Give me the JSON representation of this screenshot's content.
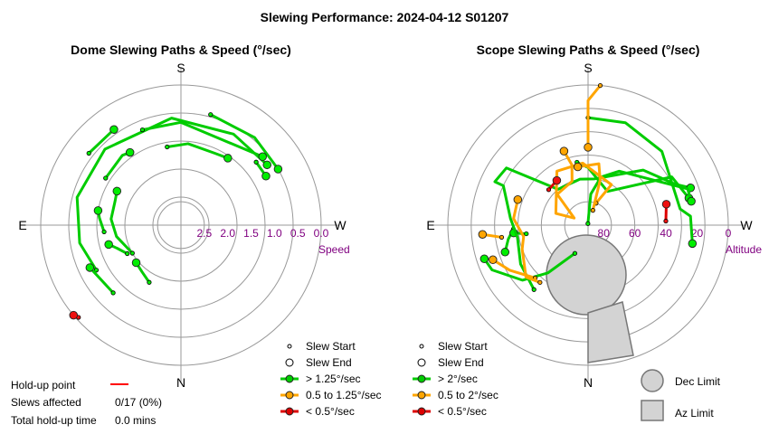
{
  "title": "Slewing Performance: 2024-04-12 S01207",
  "chart_data": [
    {
      "type": "polar",
      "title": "Dome Slewing Paths & Speed (°/sec)",
      "directions": {
        "top": "S",
        "bottom": "N",
        "left": "E",
        "right": "W"
      },
      "radial_label": "Speed",
      "radial_ticks": [
        "2.5",
        "2.0",
        "1.5",
        "1.0",
        "0.5",
        "0.0"
      ],
      "radial_values": [
        2.5,
        2.0,
        1.5,
        1.0,
        0.5,
        0.0
      ],
      "speed_range": [
        0,
        3
      ],
      "grid": true,
      "legend": [
        {
          "label": "Slew Start",
          "marker": "small-circle"
        },
        {
          "label": "Slew End",
          "marker": "circle"
        },
        {
          "label": "> 1.25°/sec",
          "color": "#00cc00"
        },
        {
          "label": "0.5 to 1.25°/sec",
          "color": "#ffa500"
        },
        {
          "label": "< 0.5°/sec",
          "color": "#dd0000"
        }
      ],
      "paths": [
        {
          "class": "fast",
          "pts": [
            [
              151,
              1.6
            ],
            [
              140,
              1.7
            ],
            [
              130,
              1.75
            ]
          ]
        },
        {
          "class": "fast",
          "pts": [
            [
              120,
              1.8
            ],
            [
              100,
              1.6
            ],
            [
              85,
              1.5
            ],
            [
              70,
              1.5
            ],
            [
              62,
              1.45
            ]
          ]
        },
        {
          "class": "fast",
          "pts": [
            [
              118,
              1.7
            ],
            [
              110,
              1.55
            ],
            [
              105,
              1.4
            ]
          ]
        },
        {
          "class": "fast",
          "pts": [
            [
              95,
              1.35
            ],
            [
              85,
              1.25
            ],
            [
              80,
              1.2
            ]
          ]
        },
        {
          "class": "fast",
          "pts": [
            [
              58,
              1.1
            ],
            [
              40,
              1.05
            ],
            [
              35,
              1.1
            ]
          ]
        },
        {
          "class": "fast",
          "pts": [
            [
              10,
              1.3
            ],
            [
              -5,
              1.25
            ],
            [
              -25,
              1.3
            ],
            [
              -35,
              1.25
            ]
          ]
        },
        {
          "class": "fast",
          "pts": [
            [
              118,
              0.95
            ],
            [
              100,
              0.8
            ],
            [
              75,
              0.7
            ],
            [
              45,
              0.7
            ],
            [
              5,
              0.7
            ],
            [
              -30,
              0.75
            ],
            [
              -55,
              0.75
            ]
          ]
        },
        {
          "class": "fast",
          "pts": [
            [
              -15,
              0.55
            ],
            [
              -40,
              0.55
            ],
            [
              -60,
              0.6
            ]
          ]
        },
        {
          "class": "fast",
          "pts": [
            [
              22,
              0.8
            ],
            [
              0,
              0.8
            ],
            [
              -50,
              0.72
            ]
          ]
        },
        {
          "class": "fast",
          "pts": [
            [
              135,
              0.95
            ],
            [
              115,
              0.85
            ]
          ]
        },
        {
          "class": "fast",
          "pts": [
            [
              52,
              0.5
            ],
            [
              35,
              0.5
            ]
          ]
        },
        {
          "class": "fast",
          "pts": [
            [
              -50,
              0.9
            ],
            [
              -60,
              0.9
            ]
          ]
        },
        {
          "class": "slow",
          "pts": [
            [
              132,
              0.05
            ],
            [
              130,
              0.0
            ]
          ]
        }
      ]
    },
    {
      "type": "polar",
      "title": "Scope Slewing Paths & Speed (°/sec)",
      "directions": {
        "top": "S",
        "bottom": "N",
        "left": "E",
        "right": "W"
      },
      "radial_label": "Altitude",
      "radial_ticks": [
        "80",
        "60",
        "40",
        "20",
        "0"
      ],
      "radial_values": [
        80,
        60,
        40,
        20,
        0
      ],
      "grid": true,
      "legend": [
        {
          "label": "Slew Start",
          "marker": "small-circle"
        },
        {
          "label": "Slew End",
          "marker": "circle"
        },
        {
          "label": "> 2°/sec",
          "color": "#00cc00"
        },
        {
          "label": "0.5 to 2°/sec",
          "color": "#ffa500"
        },
        {
          "label": "< 0.5°/sec",
          "color": "#dd0000"
        }
      ],
      "limits": [
        {
          "label": "Dec Limit",
          "shape": "circle",
          "az": 0,
          "alt": 45,
          "radius_deg": 15
        },
        {
          "label": "Az Limit",
          "shape": "wedge",
          "alt_range": [
            0,
            45
          ],
          "az_range": [
            -20,
            0
          ]
        }
      ],
      "paths": [
        {
          "class": "fast",
          "pts": [
            [
              0,
              21
            ],
            [
              -20,
              20
            ],
            [
              -45,
              23
            ],
            [
              -80,
              30
            ],
            [
              -85,
              24
            ],
            [
              -100,
              22
            ]
          ]
        },
        {
          "class": "fast",
          "pts": [
            [
              93,
              42
            ],
            [
              100,
              38
            ],
            [
              108,
              34
            ]
          ]
        },
        {
          "class": "fast",
          "pts": [
            [
              98,
              50
            ],
            [
              96,
              42
            ]
          ]
        },
        {
          "class": "fast",
          "pts": [
            [
              155,
              70
            ],
            [
              140,
              50
            ],
            [
              130,
              35
            ],
            [
              115,
              22
            ],
            [
              108,
              20
            ]
          ]
        },
        {
          "class": "fast",
          "pts": [
            [
              140,
              36
            ],
            [
              120,
              40
            ],
            [
              100,
              44
            ],
            [
              85,
              40
            ],
            [
              65,
              30
            ],
            [
              65,
              24
            ],
            [
              55,
              26
            ],
            [
              40,
              60
            ],
            [
              10,
              60
            ],
            [
              -8,
              60
            ],
            [
              -45,
              40
            ],
            [
              -65,
              28
            ],
            [
              -70,
              20
            ]
          ]
        },
        {
          "class": "fast",
          "pts": [
            [
              10,
              49
            ],
            [
              0,
              53
            ],
            [
              -30,
              65
            ],
            [
              -60,
              28
            ],
            [
              -75,
              23
            ]
          ]
        },
        {
          "class": "fast",
          "pts": [
            [
              5,
              89
            ],
            [
              -5,
              70
            ],
            [
              -15,
              58
            ],
            [
              -30,
              50
            ],
            [
              -70,
              22
            ],
            [
              -77,
              22
            ]
          ]
        },
        {
          "class": "mid",
          "pts": [
            [
              -5,
              0
            ],
            [
              0,
              10
            ],
            [
              0,
              20
            ],
            [
              0,
              40
            ]
          ]
        },
        {
          "class": "mid",
          "pts": [
            [
              -20,
              75
            ],
            [
              -30,
              60
            ],
            [
              5,
              50
            ],
            [
              30,
              50
            ],
            [
              70,
              68
            ],
            [
              63,
              80
            ],
            [
              45,
              62
            ],
            [
              20,
              60
            ],
            [
              15,
              50
            ],
            [
              18,
              40
            ]
          ]
        },
        {
          "class": "mid",
          "pts": [
            [
              -18,
              80
            ],
            [
              -15,
              60
            ],
            [
              -10,
              50
            ],
            [
              10,
              52
            ]
          ]
        },
        {
          "class": "mid",
          "pts": [
            [
              135,
              42
            ],
            [
              120,
              32
            ],
            [
              110,
              25
            ]
          ]
        },
        {
          "class": "mid",
          "pts": [
            [
              98,
              34
            ],
            [
              95,
              22
            ]
          ]
        },
        {
          "class": "mid",
          "pts": [
            [
              140,
              42
            ],
            [
              130,
              38
            ],
            [
              110,
              45
            ],
            [
              100,
              48
            ],
            [
              85,
              42
            ],
            [
              70,
              42
            ]
          ]
        },
        {
          "class": "slow",
          "pts": [
            [
              -87,
              40
            ],
            [
              -75,
              38
            ]
          ]
        },
        {
          "class": "slow",
          "pts": [
            [
              48,
              56
            ],
            [
              35,
              55
            ]
          ]
        }
      ]
    }
  ],
  "footer": {
    "holdup_label": "Hold-up point",
    "slews_label": "Slews affected",
    "slews_value": "0/17 (0%)",
    "total_label": "Total hold-up time",
    "total_value": "0.0 mins"
  }
}
